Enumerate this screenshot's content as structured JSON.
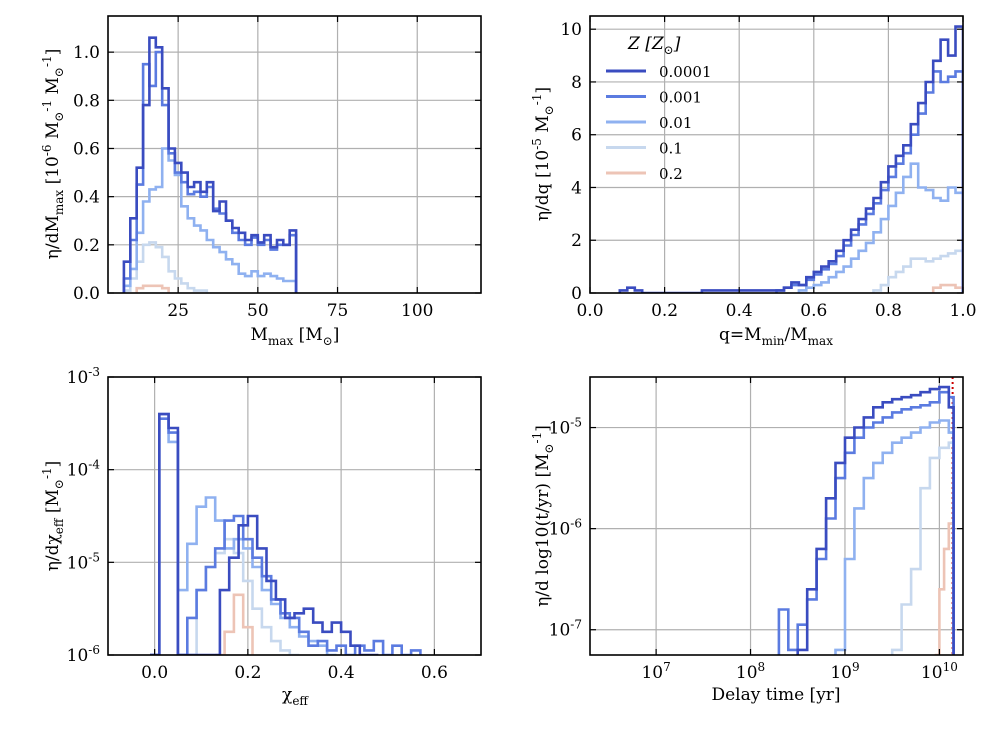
{
  "chart_data": [
    {
      "id": "p1",
      "type": "step",
      "xlabel": "M_max [M_⊙]",
      "ylabel": "η/dM_max [10^-6 M_⊙^-1 M_⊙^-1]",
      "xlim": [
        3,
        120
      ],
      "ylim": [
        0,
        1.15
      ],
      "xscale": "linear",
      "yscale": "linear",
      "xticks": [
        25,
        50,
        75,
        100
      ],
      "xtick_labels": [
        "25",
        "50",
        "75",
        "100"
      ],
      "yticks": [
        0,
        0.2,
        0.4,
        0.6,
        0.8,
        1.0
      ],
      "ytick_labels": [
        "0.0",
        "0.2",
        "0.4",
        "0.6",
        "0.8",
        "1.0"
      ],
      "series": [
        {
          "name": "0.0001",
          "x": [
            8,
            10,
            12,
            14,
            16,
            18,
            20,
            22,
            24,
            26,
            28,
            30,
            32,
            34,
            36,
            38,
            40,
            42,
            44,
            46,
            48,
            50,
            52,
            54,
            56,
            58,
            60,
            62
          ],
          "y": [
            0.13,
            0.31,
            0.52,
            0.78,
            1.06,
            1.02,
            0.85,
            0.6,
            0.54,
            0.5,
            0.44,
            0.46,
            0.42,
            0.46,
            0.34,
            0.38,
            0.3,
            0.27,
            0.25,
            0.22,
            0.24,
            0.21,
            0.24,
            0.19,
            0.22,
            0.2,
            0.26,
            0
          ]
        },
        {
          "name": "0.001",
          "x": [
            8,
            10,
            12,
            14,
            16,
            18,
            20,
            22,
            24,
            26,
            28,
            30,
            32,
            34,
            36,
            38,
            40,
            42,
            44,
            46,
            48,
            50,
            52,
            54,
            56,
            58,
            60,
            62
          ],
          "y": [
            0.06,
            0.22,
            0.45,
            0.95,
            0.86,
            1.0,
            0.78,
            0.58,
            0.5,
            0.46,
            0.41,
            0.42,
            0.4,
            0.44,
            0.35,
            0.33,
            0.3,
            0.25,
            0.22,
            0.2,
            0.23,
            0.2,
            0.22,
            0.18,
            0.2,
            0.2,
            0.24,
            0
          ]
        },
        {
          "name": "0.01",
          "x": [
            8,
            10,
            12,
            14,
            16,
            18,
            20,
            22,
            24,
            26,
            28,
            30,
            32,
            34,
            36,
            38,
            40,
            42,
            44,
            46,
            48,
            50,
            52,
            54,
            56,
            58,
            60,
            62
          ],
          "y": [
            0.03,
            0.1,
            0.25,
            0.38,
            0.43,
            0.44,
            0.6,
            0.55,
            0.49,
            0.36,
            0.31,
            0.28,
            0.26,
            0.22,
            0.19,
            0.17,
            0.14,
            0.12,
            0.08,
            0.07,
            0.09,
            0.07,
            0.08,
            0.07,
            0.06,
            0.05,
            0.05,
            0
          ]
        },
        {
          "name": "0.1",
          "x": [
            8,
            10,
            12,
            14,
            16,
            18,
            20,
            22,
            24,
            26,
            28,
            30,
            32,
            34
          ],
          "y": [
            0.01,
            0.06,
            0.13,
            0.2,
            0.21,
            0.19,
            0.15,
            0.09,
            0.06,
            0.04,
            0.02,
            0.01,
            0.01,
            0
          ]
        },
        {
          "name": "0.2",
          "x": [
            12,
            14,
            16,
            18,
            20,
            22
          ],
          "y": [
            0.02,
            0.03,
            0.03,
            0.03,
            0.02,
            0
          ]
        }
      ]
    },
    {
      "id": "p2",
      "type": "step",
      "xlabel": "q=M_min/M_max",
      "ylabel": "η/dq [10^-5 M_⊙^-1]",
      "xlim": [
        0,
        1
      ],
      "ylim": [
        0,
        10.5
      ],
      "xscale": "linear",
      "yscale": "linear",
      "xticks": [
        0,
        0.2,
        0.4,
        0.6,
        0.8,
        1.0
      ],
      "xtick_labels": [
        "0.0",
        "0.2",
        "0.4",
        "0.6",
        "0.8",
        "1.0"
      ],
      "yticks": [
        0,
        2,
        4,
        6,
        8,
        10
      ],
      "ytick_labels": [
        "0",
        "2",
        "4",
        "6",
        "8",
        "10"
      ],
      "legend": {
        "title": "Z [Z_⊙]",
        "location": "top-left",
        "entries": [
          "0.0001",
          "0.001",
          "0.01",
          "0.1",
          "0.2"
        ]
      },
      "series": [
        {
          "name": "0.0001",
          "x": [
            0.08,
            0.1,
            0.12,
            0.14,
            0.3,
            0.5,
            0.52,
            0.54,
            0.56,
            0.58,
            0.6,
            0.62,
            0.64,
            0.66,
            0.68,
            0.7,
            0.72,
            0.74,
            0.76,
            0.78,
            0.8,
            0.82,
            0.84,
            0.86,
            0.88,
            0.9,
            0.92,
            0.94,
            0.96,
            0.98,
            1.0
          ],
          "y": [
            0.1,
            0.2,
            0.1,
            0,
            0.1,
            0.1,
            0.2,
            0.4,
            0.3,
            0.6,
            0.8,
            1.0,
            1.2,
            1.6,
            2.0,
            2.4,
            2.8,
            3.2,
            3.6,
            4.2,
            4.8,
            5.2,
            5.6,
            6.4,
            7.2,
            8.0,
            8.8,
            9.6,
            9.0,
            10.1,
            0
          ]
        },
        {
          "name": "0.001",
          "x": [
            0.5,
            0.52,
            0.54,
            0.56,
            0.58,
            0.6,
            0.62,
            0.64,
            0.66,
            0.68,
            0.7,
            0.72,
            0.74,
            0.76,
            0.78,
            0.8,
            0.82,
            0.84,
            0.86,
            0.88,
            0.9,
            0.92,
            0.94,
            0.96,
            0.98,
            1.0
          ],
          "y": [
            0.1,
            0.2,
            0.3,
            0.3,
            0.5,
            0.7,
            0.9,
            1.1,
            1.4,
            1.8,
            2.2,
            2.6,
            3.0,
            3.4,
            3.9,
            4.4,
            4.9,
            5.3,
            6.0,
            6.8,
            7.6,
            8.4,
            8.0,
            8.2,
            8.4,
            0
          ]
        },
        {
          "name": "0.01",
          "x": [
            0.56,
            0.58,
            0.6,
            0.62,
            0.64,
            0.66,
            0.68,
            0.7,
            0.72,
            0.74,
            0.76,
            0.78,
            0.8,
            0.82,
            0.84,
            0.86,
            0.88,
            0.9,
            0.92,
            0.94,
            0.96,
            0.98,
            1.0
          ],
          "y": [
            0.1,
            0.2,
            0.3,
            0.4,
            0.6,
            0.8,
            1.0,
            1.3,
            1.6,
            1.9,
            2.3,
            2.8,
            3.3,
            3.8,
            4.4,
            4.9,
            4.0,
            3.9,
            3.6,
            3.5,
            4.0,
            3.8,
            0
          ]
        },
        {
          "name": "0.1",
          "x": [
            0.76,
            0.78,
            0.8,
            0.82,
            0.84,
            0.86,
            0.88,
            0.9,
            0.92,
            0.94,
            0.96,
            0.98,
            1.0
          ],
          "y": [
            0.1,
            0.3,
            0.6,
            0.8,
            1.0,
            1.3,
            1.3,
            1.2,
            1.3,
            1.4,
            1.5,
            1.6,
            0
          ]
        },
        {
          "name": "0.2",
          "x": [
            0.92,
            0.94,
            0.96,
            0.98,
            1.0
          ],
          "y": [
            0.2,
            0.3,
            0.3,
            0.2,
            0
          ]
        }
      ]
    },
    {
      "id": "p3",
      "type": "step",
      "xlabel": "χ_eff",
      "ylabel": "η/dχ_eff [M_⊙^-1]",
      "xlim": [
        -0.1,
        0.7
      ],
      "ylim_log10": [
        -6,
        -3
      ],
      "xscale": "linear",
      "yscale": "log",
      "xticks": [
        0,
        0.2,
        0.4,
        0.6
      ],
      "xtick_labels": [
        "0.0",
        "0.2",
        "0.4",
        "0.6"
      ],
      "yticks_log10": [
        -6,
        -5,
        -4,
        -3
      ],
      "ytick_labels": [
        "10^-6",
        "10^-5",
        "10^-4",
        "10^-3"
      ],
      "series": [
        {
          "name": "0.0001",
          "x": [
            -0.01,
            0.01,
            0.03,
            0.05,
            0.12,
            0.14,
            0.16,
            0.18,
            0.2,
            0.22,
            0.24,
            0.26,
            0.28,
            0.3,
            0.32,
            0.34,
            0.36,
            0.38,
            0.4,
            0.42,
            0.44,
            0.46,
            0.48
          ],
          "y_log10": [
            -6,
            -3.4,
            -3.55,
            -6,
            -6,
            -5.3,
            -4.95,
            -4.6,
            -4.5,
            -4.85,
            -5.2,
            -5.4,
            -5.6,
            -5.55,
            -5.5,
            -5.65,
            -5.75,
            -5.65,
            -5.75,
            -5.9,
            -6,
            -6,
            -6
          ]
        },
        {
          "name": "0.001",
          "x": [
            -0.01,
            0.01,
            0.03,
            0.05,
            0.07,
            0.09,
            0.11,
            0.13,
            0.15,
            0.17,
            0.19,
            0.21,
            0.23,
            0.25,
            0.27,
            0.29,
            0.31,
            0.33,
            0.35,
            0.37,
            0.39,
            0.41,
            0.43,
            0.45,
            0.47,
            0.49,
            0.51,
            0.53,
            0.55,
            0.57
          ],
          "y_log10": [
            -6,
            -3.45,
            -3.6,
            -6,
            -5.6,
            -5.3,
            -5.05,
            -4.85,
            -4.55,
            -4.5,
            -4.75,
            -4.95,
            -5.15,
            -5.4,
            -5.55,
            -5.6,
            -5.75,
            -5.9,
            -5.85,
            -5.95,
            -5.9,
            -6,
            -5.9,
            -5.95,
            -5.85,
            -6,
            -5.9,
            -6,
            -5.95,
            -6
          ]
        },
        {
          "name": "0.01",
          "x": [
            -0.01,
            0.01,
            0.03,
            0.05,
            0.07,
            0.09,
            0.11,
            0.13,
            0.15,
            0.17,
            0.19,
            0.21,
            0.23,
            0.25,
            0.27,
            0.29,
            0.31,
            0.33,
            0.35,
            0.37,
            0.39
          ],
          "y_log10": [
            -6,
            -3.4,
            -3.7,
            -5.3,
            -4.8,
            -4.4,
            -4.3,
            -4.55,
            -4.85,
            -4.75,
            -4.85,
            -5.05,
            -5.3,
            -5.45,
            -5.6,
            -5.7,
            -5.8,
            -5.85,
            -5.9,
            -6,
            -6
          ]
        },
        {
          "name": "0.1",
          "x": [
            0.07,
            0.09,
            0.11,
            0.13,
            0.15,
            0.17,
            0.19,
            0.21,
            0.23,
            0.25,
            0.27,
            0.29,
            0.31
          ],
          "y_log10": [
            -6,
            -5.3,
            -5.05,
            -4.9,
            -4.75,
            -4.9,
            -5.2,
            -5.5,
            -5.7,
            -5.85,
            -5.95,
            -6,
            -6
          ]
        },
        {
          "name": "0.2",
          "x": [
            0.13,
            0.15,
            0.17,
            0.19,
            0.21
          ],
          "y_log10": [
            -6,
            -5.75,
            -5.35,
            -5.7,
            -6
          ]
        }
      ]
    },
    {
      "id": "p4",
      "type": "step",
      "xlabel": "Delay time [yr]",
      "ylabel": "η/d log10(t/yr) [M_⊙^-1]",
      "xlim_log10": [
        6.3,
        10.25
      ],
      "ylim_log10": [
        -7.25,
        -4.5
      ],
      "xscale": "log",
      "yscale": "log",
      "xticks_log10": [
        7,
        8,
        9,
        10
      ],
      "xtick_labels": [
        "10^7",
        "10^8",
        "10^9",
        "10^10"
      ],
      "yticks_log10": [
        -7,
        -6,
        -5
      ],
      "ytick_labels": [
        "10^-7",
        "10^-6",
        "10^-5"
      ],
      "reference_line_log10": 10.14,
      "series": [
        {
          "name": "0.0001",
          "x_log10": [
            8.5,
            8.6,
            8.7,
            8.8,
            8.9,
            9.0,
            9.1,
            9.2,
            9.3,
            9.4,
            9.5,
            9.6,
            9.7,
            9.8,
            9.9,
            10.0,
            10.1,
            10.15
          ],
          "y_log10": [
            -7.2,
            -6.6,
            -6.2,
            -5.7,
            -5.35,
            -5.1,
            -5.0,
            -4.9,
            -4.8,
            -4.75,
            -4.72,
            -4.7,
            -4.68,
            -4.65,
            -4.62,
            -4.6,
            -4.8,
            -7.25
          ]
        },
        {
          "name": "0.001",
          "x_log10": [
            8.3,
            8.4,
            8.5,
            8.6,
            8.7,
            8.8,
            8.9,
            9.0,
            9.1,
            9.2,
            9.3,
            9.4,
            9.5,
            9.6,
            9.7,
            9.8,
            9.9,
            10.0,
            10.1,
            10.15
          ],
          "y_log10": [
            -6.8,
            -7.2,
            -6.95,
            -6.7,
            -6.3,
            -5.9,
            -5.5,
            -5.25,
            -5.1,
            -5.0,
            -4.95,
            -4.9,
            -4.85,
            -4.82,
            -4.8,
            -4.78,
            -4.75,
            -4.65,
            -4.7,
            -7.25
          ]
        },
        {
          "name": "0.01",
          "x_log10": [
            8.9,
            9.0,
            9.1,
            9.2,
            9.3,
            9.4,
            9.5,
            9.6,
            9.7,
            9.8,
            9.9,
            10.0,
            10.1,
            10.15
          ],
          "y_log10": [
            -7.2,
            -6.3,
            -5.8,
            -5.5,
            -5.35,
            -5.25,
            -5.15,
            -5.1,
            -5.05,
            -5.0,
            -4.95,
            -4.93,
            -5.05,
            -7.25
          ]
        },
        {
          "name": "0.1",
          "x_log10": [
            9.5,
            9.6,
            9.7,
            9.8,
            9.9,
            10.0,
            10.1,
            10.15
          ],
          "y_log10": [
            -7.2,
            -6.75,
            -6.4,
            -5.6,
            -5.3,
            -5.2,
            -5.15,
            -7.25
          ]
        },
        {
          "name": "0.2",
          "x_log10": [
            9.95,
            10.0,
            10.05,
            10.1,
            10.15
          ],
          "y_log10": [
            -7.25,
            -6.6,
            -6.2,
            -5.95,
            -7.25
          ]
        }
      ]
    }
  ],
  "legend": {
    "title": "Z [Z_⊙]",
    "entries": [
      "0.0001",
      "0.001",
      "0.01",
      "0.1",
      "0.2"
    ],
    "colors": [
      "#3a4cc0",
      "#5b7be0",
      "#8fb1f0",
      "#c7d8ee",
      "#edc4b6"
    ]
  },
  "colors": {
    "0.0001": "#3a4cc0",
    "0.001": "#5b7be0",
    "0.01": "#8fb1f0",
    "0.1": "#c7d8ee",
    "0.2": "#edc4b6",
    "reference": "#cc0000",
    "grid": "#b0b0b0"
  }
}
